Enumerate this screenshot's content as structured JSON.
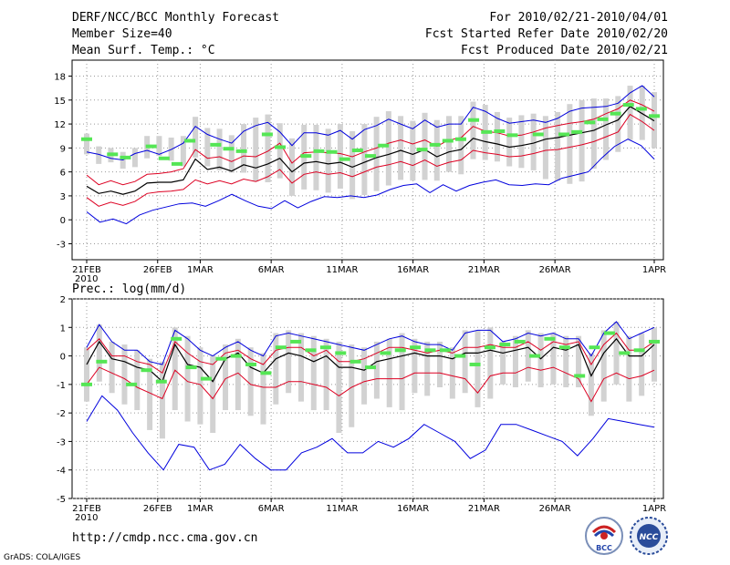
{
  "header": {
    "title": "DERF/NCC/BCC Monthly Forecast",
    "member_size": "Member Size=40",
    "variable": "Mean Surf. Temp.: °C",
    "forecast_range": "For 2010/02/21-2010/04/01",
    "started_date": "Fcst Started Refer Date 2010/02/20",
    "produced_date": "Fcst Produced Date 2010/02/21"
  },
  "footer": {
    "url": "http://cmdp.ncc.cma.gov.cn",
    "credit": "GrADS: COLA/IGES",
    "logo_bcc": "BCC",
    "logo_ncc": "NCC"
  },
  "colors": {
    "mean": "#000000",
    "inner_band": "#dd0022",
    "outer_band": "#0000dd",
    "box": "#d2d2d2",
    "obs": "#55e655",
    "grid": "#999999"
  },
  "chart_data": [
    {
      "type": "line",
      "title": "Mean Surf. Temp.: °C",
      "x_labels": [
        "21FEB\n2010",
        "26FEB",
        "1MAR",
        "6MAR",
        "11MAR",
        "16MAR",
        "21MAR",
        "26MAR",
        "1APR"
      ],
      "x_label_days": [
        0,
        5,
        8,
        13,
        18,
        23,
        28,
        33,
        40
      ],
      "xlim": [
        0,
        40
      ],
      "ylim": [
        -5,
        20
      ],
      "yticks": [
        -3,
        0,
        3,
        6,
        9,
        12,
        15,
        18
      ],
      "series": [
        {
          "name": "mean",
          "values": [
            4.2,
            3.3,
            3.6,
            3.2,
            3.6,
            4.6,
            4.7,
            4.7,
            5.0,
            7.6,
            6.3,
            6.6,
            6.1,
            6.9,
            6.5,
            7.0,
            7.7,
            6.0,
            7.1,
            7.3,
            7.0,
            7.2,
            6.6,
            7.2,
            7.8,
            8.2,
            8.7,
            8.2,
            8.8,
            7.9,
            8.5,
            8.8,
            10.2,
            9.8,
            9.5,
            9.1,
            9.3,
            9.6,
            10.1,
            10.3,
            10.6,
            10.9,
            11.2,
            11.9,
            12.5,
            14.2,
            13.3,
            12.4
          ]
        },
        {
          "name": "upper_red",
          "values": [
            5.6,
            4.4,
            4.9,
            4.4,
            4.8,
            5.7,
            5.8,
            6.0,
            6.4,
            8.8,
            7.7,
            7.9,
            7.3,
            8.0,
            7.9,
            8.6,
            9.6,
            7.1,
            8.4,
            8.5,
            8.4,
            8.3,
            7.9,
            8.5,
            9.0,
            9.6,
            10.0,
            9.5,
            10.0,
            9.2,
            10.0,
            10.3,
            11.7,
            11.1,
            10.9,
            10.5,
            10.6,
            11.0,
            11.5,
            11.8,
            12.1,
            12.3,
            12.6,
            13.3,
            13.9,
            15.0,
            14.4,
            13.6
          ]
        },
        {
          "name": "lower_red",
          "values": [
            2.8,
            1.7,
            2.2,
            1.8,
            2.3,
            3.3,
            3.5,
            3.6,
            3.8,
            5.0,
            4.5,
            4.9,
            4.5,
            5.1,
            4.8,
            5.4,
            6.3,
            4.6,
            5.7,
            6.0,
            5.7,
            5.9,
            5.4,
            6.0,
            6.6,
            6.9,
            7.3,
            6.8,
            7.5,
            6.7,
            7.2,
            7.5,
            8.7,
            8.4,
            8.2,
            7.9,
            8.0,
            8.3,
            8.7,
            8.8,
            9.1,
            9.4,
            9.8,
            10.4,
            11.0,
            13.2,
            12.3,
            11.2
          ]
        },
        {
          "name": "upper_blue",
          "values": [
            8.5,
            8.2,
            7.7,
            7.5,
            8.3,
            8.7,
            8.2,
            8.8,
            9.6,
            11.7,
            10.7,
            10.1,
            9.6,
            11.1,
            11.8,
            12.2,
            11.0,
            9.3,
            10.9,
            10.9,
            10.6,
            11.2,
            10.1,
            11.3,
            11.8,
            12.6,
            12.0,
            11.4,
            12.5,
            11.6,
            12.0,
            12.0,
            14.1,
            13.6,
            12.7,
            12.1,
            12.3,
            12.5,
            12.2,
            12.7,
            13.6,
            14.0,
            14.1,
            14.2,
            14.6,
            15.9,
            16.8,
            15.4
          ]
        },
        {
          "name": "lower_blue",
          "values": [
            1.0,
            -0.3,
            0.1,
            -0.5,
            0.6,
            1.2,
            1.6,
            2.0,
            2.1,
            1.7,
            2.4,
            3.2,
            2.4,
            1.7,
            1.4,
            2.4,
            1.5,
            2.3,
            2.9,
            2.8,
            3.0,
            2.8,
            3.1,
            3.8,
            4.3,
            4.5,
            3.4,
            4.4,
            3.6,
            4.3,
            4.7,
            5.0,
            4.4,
            4.3,
            4.5,
            4.4,
            5.2,
            5.6,
            6.0,
            7.7,
            9.2,
            10.1,
            9.3,
            7.6
          ]
        },
        {
          "name": "box_top",
          "values": [
            10.8,
            9.2,
            9.0,
            8.5,
            9.0,
            10.5,
            10.5,
            10.3,
            10.5,
            12.9,
            11.5,
            11.4,
            10.6,
            12.0,
            12.8,
            13.2,
            12.1,
            10.2,
            11.9,
            11.9,
            11.4,
            12.0,
            11.1,
            12.0,
            12.9,
            13.6,
            13.0,
            12.4,
            13.4,
            12.5,
            13.0,
            13.0,
            14.8,
            14.4,
            13.5,
            12.8,
            13.1,
            13.3,
            13.0,
            13.5,
            14.5,
            15.0,
            15.2,
            15.2,
            15.5,
            16.8,
            16.8,
            16.0
          ]
        },
        {
          "name": "box_bottom",
          "values": [
            8.2,
            7.0,
            7.2,
            6.4,
            6.6,
            7.7,
            8.0,
            7.4,
            6.7,
            7.8,
            6.7,
            6.2,
            5.9,
            5.9,
            4.8,
            4.7,
            5.2,
            3.0,
            3.8,
            3.7,
            3.4,
            3.9,
            2.6,
            3.1,
            3.6,
            4.3,
            5.0,
            4.9,
            5.0,
            4.9,
            6.0,
            5.7,
            7.6,
            7.5,
            7.3,
            6.7,
            6.5,
            6.2,
            5.1,
            4.9,
            4.5,
            4.8,
            6.4,
            7.5,
            8.5,
            10.0,
            10.0,
            9.0
          ]
        },
        {
          "name": "obs",
          "values": [
            10.1,
            null,
            8.2,
            7.8,
            null,
            9.2,
            7.7,
            7.0,
            9.9,
            null,
            9.4,
            8.9,
            8.6,
            null,
            10.7,
            9.1,
            null,
            8.0,
            8.6,
            8.5,
            7.6,
            8.7,
            8.0,
            9.3,
            null,
            null,
            8.8,
            9.4,
            9.9,
            10.1,
            12.5,
            11.0,
            11.1,
            10.6,
            null,
            10.7,
            null,
            10.7,
            11.0,
            12.2,
            12.6,
            13.3,
            14.4,
            13.9,
            13.0
          ]
        }
      ]
    },
    {
      "type": "line",
      "title": "Prec.: log(mm/d)",
      "x_labels": [
        "21FEB\n2010",
        "26FEB",
        "1MAR",
        "6MAR",
        "11MAR",
        "16MAR",
        "21MAR",
        "26MAR",
        "1APR"
      ],
      "x_label_days": [
        0,
        5,
        8,
        13,
        18,
        23,
        28,
        33,
        40
      ],
      "xlim": [
        0,
        40
      ],
      "ylim": [
        -5,
        2
      ],
      "yticks": [
        -5,
        -4,
        -3,
        -2,
        -1,
        0,
        1,
        2
      ],
      "series": [
        {
          "name": "mean",
          "values": [
            -0.3,
            0.5,
            -0.1,
            -0.2,
            -0.4,
            -0.5,
            -0.9,
            0.4,
            -0.3,
            -0.4,
            -0.9,
            -0.1,
            0.1,
            -0.4,
            -0.6,
            -0.1,
            0.1,
            0.0,
            -0.2,
            0.0,
            -0.4,
            -0.4,
            -0.5,
            -0.2,
            -0.1,
            0.0,
            0.1,
            0.0,
            0.0,
            -0.1,
            0.1,
            0.1,
            0.2,
            0.1,
            0.2,
            0.3,
            -0.1,
            0.3,
            0.2,
            0.4,
            -0.7,
            0.1,
            0.6,
            0.0,
            0.0,
            0.4
          ]
        },
        {
          "name": "upper_red",
          "values": [
            0.2,
            0.6,
            0.0,
            0.0,
            -0.2,
            -0.3,
            -0.6,
            0.5,
            0.1,
            -0.2,
            -0.3,
            0.1,
            0.2,
            -0.1,
            -0.3,
            0.2,
            0.3,
            0.3,
            0.0,
            0.2,
            -0.2,
            -0.2,
            -0.1,
            0.1,
            0.3,
            0.3,
            0.2,
            0.1,
            0.2,
            0.1,
            0.3,
            0.3,
            0.4,
            0.3,
            0.3,
            0.5,
            0.2,
            0.5,
            0.4,
            0.5,
            -0.3,
            0.4,
            0.8,
            0.2,
            0.2,
            0.5
          ]
        },
        {
          "name": "lower_red",
          "values": [
            -1.0,
            -0.4,
            -0.6,
            -0.8,
            -1.1,
            -1.3,
            -1.5,
            -0.5,
            -0.9,
            -1.0,
            -1.5,
            -0.8,
            -0.6,
            -1.0,
            -1.1,
            -1.1,
            -0.9,
            -0.9,
            -1.0,
            -1.1,
            -1.4,
            -1.1,
            -0.9,
            -0.8,
            -0.8,
            -0.8,
            -0.6,
            -0.6,
            -0.6,
            -0.7,
            -0.8,
            -1.3,
            -0.7,
            -0.6,
            -0.6,
            -0.4,
            -0.5,
            -0.4,
            -0.6,
            -0.8,
            -1.6,
            -0.8,
            -0.6,
            -0.8,
            -0.7,
            -0.5
          ]
        },
        {
          "name": "upper_blue",
          "values": [
            0.3,
            1.1,
            0.5,
            0.2,
            0.2,
            -0.2,
            -0.3,
            0.9,
            0.6,
            0.2,
            0.0,
            0.3,
            0.5,
            0.2,
            0.0,
            0.7,
            0.8,
            0.7,
            0.6,
            0.5,
            0.4,
            0.3,
            0.2,
            0.4,
            0.6,
            0.7,
            0.5,
            0.4,
            0.4,
            0.2,
            0.8,
            0.9,
            0.9,
            0.5,
            0.6,
            0.8,
            0.7,
            0.8,
            0.6,
            0.6,
            0.0,
            0.8,
            1.2,
            0.6,
            0.8,
            1.0
          ]
        },
        {
          "name": "lower_blue",
          "values": [
            -2.3,
            -1.4,
            -1.9,
            -2.7,
            -3.4,
            -4.0,
            -3.1,
            -3.2,
            -4.0,
            -3.8,
            -3.1,
            -3.6,
            -4.0,
            -4.0,
            -3.4,
            -3.2,
            -2.9,
            -3.4,
            -3.4,
            -3.0,
            -3.2,
            -2.9,
            -2.4,
            -2.7,
            -3.0,
            -3.6,
            -3.3,
            -2.4,
            -2.4,
            -2.6,
            -2.8,
            -3.0,
            -3.5,
            -2.9,
            -2.2,
            -2.3,
            -2.4,
            -2.5
          ]
        },
        {
          "name": "box_top",
          "values": [
            0.3,
            1.1,
            0.5,
            0.4,
            0.2,
            -0.1,
            -0.2,
            1.0,
            0.7,
            0.3,
            0.0,
            0.4,
            0.6,
            0.3,
            0.1,
            0.8,
            0.9,
            0.8,
            0.7,
            0.6,
            0.5,
            0.4,
            0.3,
            0.5,
            0.6,
            0.8,
            0.6,
            0.5,
            0.5,
            0.3,
            0.9,
            0.9,
            1.0,
            0.5,
            0.7,
            0.9,
            0.8,
            0.8,
            0.7,
            0.7,
            0.1,
            0.9,
            1.2,
            0.7,
            0.8,
            1.0
          ]
        },
        {
          "name": "box_bottom",
          "values": [
            -1.6,
            -0.9,
            -1.3,
            -1.7,
            -1.9,
            -2.6,
            -2.9,
            -1.9,
            -2.3,
            -2.4,
            -2.7,
            -1.9,
            -1.9,
            -2.1,
            -2.4,
            -1.7,
            -1.3,
            -1.6,
            -1.9,
            -1.9,
            -2.7,
            -2.5,
            -1.7,
            -1.5,
            -1.8,
            -1.9,
            -1.3,
            -1.4,
            -1.1,
            -1.5,
            -1.3,
            -1.8,
            -1.5,
            -1.0,
            -1.1,
            -0.9,
            -1.1,
            -1.0,
            -1.1,
            -1.1,
            -2.1,
            -1.6,
            -1.0,
            -1.6,
            -1.4,
            -0.9
          ]
        },
        {
          "name": "obs",
          "values": [
            -1.0,
            -0.2,
            null,
            -1.0,
            -0.5,
            -0.9,
            0.6,
            -0.4,
            -0.8,
            -0.1,
            0.0,
            -0.3,
            -0.6,
            0.3,
            0.5,
            0.2,
            0.3,
            0.1,
            -0.2,
            -0.4,
            0.1,
            0.2,
            0.3,
            0.2,
            0.2,
            0.0,
            -0.3,
            0.3,
            0.4,
            0.5,
            0.0,
            0.6,
            0.3,
            -0.7,
            0.3,
            0.8,
            0.1,
            0.2,
            0.5
          ]
        }
      ]
    }
  ]
}
